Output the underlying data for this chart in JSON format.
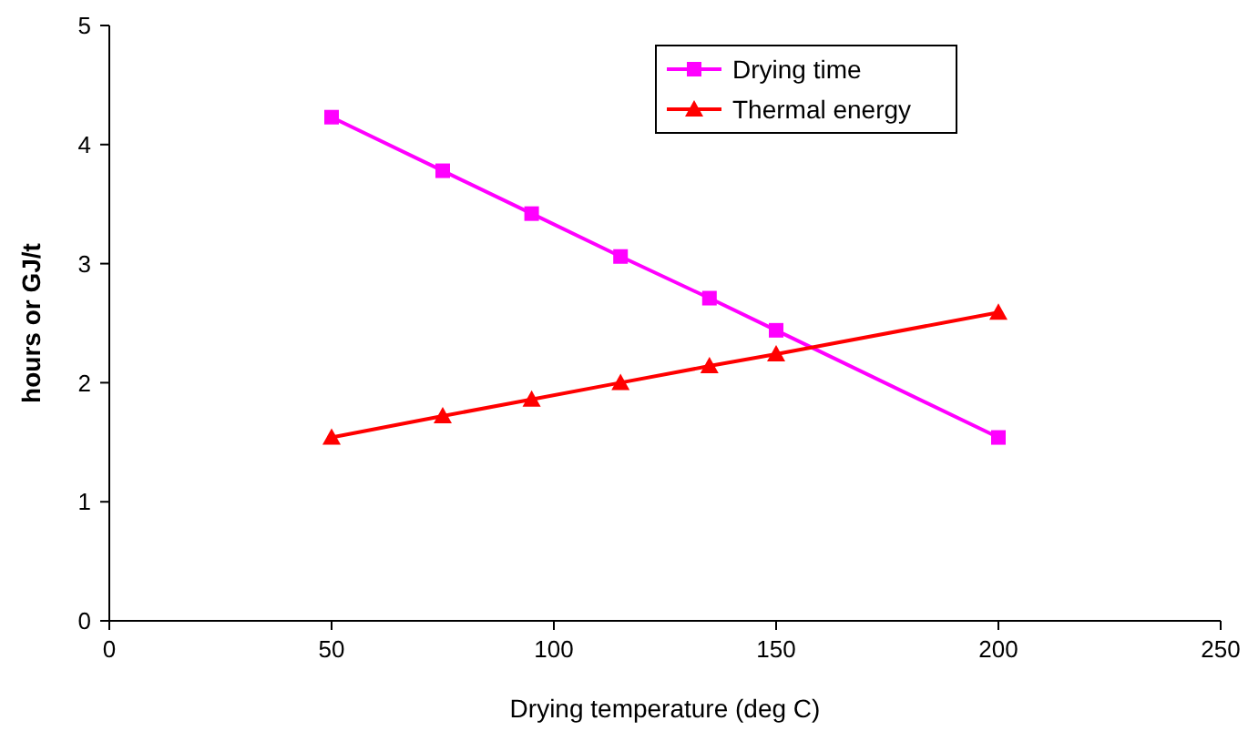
{
  "chart_data": {
    "type": "line",
    "xlabel": "Drying temperature (deg C)",
    "ylabel": "hours or GJ/t",
    "x": [
      50,
      75,
      95,
      115,
      135,
      150,
      200
    ],
    "series": [
      {
        "name": "Drying time",
        "color": "#ff00ff",
        "marker": "square",
        "values": [
          4.23,
          3.78,
          3.42,
          3.06,
          2.71,
          2.44,
          1.54
        ]
      },
      {
        "name": "Thermal energy",
        "color": "#ff0000",
        "marker": "triangle",
        "values": [
          1.54,
          1.72,
          1.86,
          2.0,
          2.14,
          2.24,
          2.59
        ]
      }
    ],
    "xlim": [
      0,
      250
    ],
    "xticks": [
      0,
      50,
      100,
      150,
      200,
      250
    ],
    "ylim": [
      0,
      5
    ],
    "yticks": [
      0,
      1,
      2,
      3,
      4,
      5
    ],
    "grid": false,
    "legend": "top right"
  }
}
